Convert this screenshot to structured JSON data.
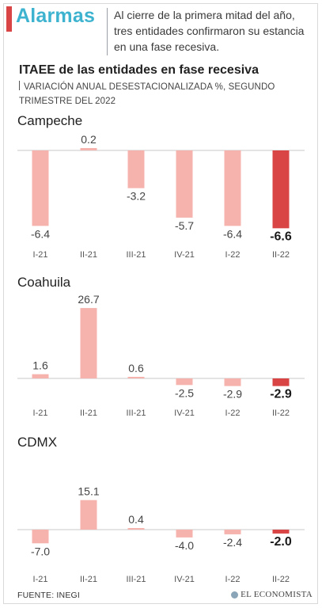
{
  "header": {
    "title": "Alarmas",
    "description": "Al cierre de la primera mitad del año, tres entidades confirmaron su estancia en una fase recesiva.",
    "accent_color": "#d94545",
    "title_color": "#3eb3cf"
  },
  "chart_title": "ITAEE de las entidades en fase recesiva",
  "chart_subtitle": "VARIACIÓN ANUAL DESESTACIONALIZADA %, SEGUNDO TRIMESTRE DEL 2022",
  "footer": {
    "source": "FUENTE: INEGI",
    "brand": "EL ECONOMISTA"
  },
  "colors": {
    "bar": "#f6b3ad",
    "highlight": "#d94545",
    "baseline": "#c9c9c9"
  },
  "chart_data": [
    {
      "type": "bar",
      "title": "Campeche",
      "categories": [
        "I-21",
        "II-21",
        "III-21",
        "IV-21",
        "I-22",
        "II-22"
      ],
      "values": [
        -6.4,
        0.2,
        -3.2,
        -5.7,
        -6.4,
        -6.6
      ],
      "value_labels": [
        "-6.4",
        "0.2",
        "-3.2",
        "-5.7",
        "-6.4",
        "-6.6"
      ],
      "highlight_index": 5
    },
    {
      "type": "bar",
      "title": "Coahuila",
      "categories": [
        "I-21",
        "II-21",
        "III-21",
        "IV-21",
        "I-22",
        "II-22"
      ],
      "values": [
        1.6,
        26.7,
        0.6,
        -2.5,
        -2.9,
        -2.9
      ],
      "value_labels": [
        "1.6",
        "26.7",
        "0.6",
        "-2.5",
        "-2.9",
        "-2.9"
      ],
      "highlight_index": 5
    },
    {
      "type": "bar",
      "title": "CDMX",
      "categories": [
        "I-21",
        "II-21",
        "III-21",
        "IV-21",
        "I-22",
        "II-22"
      ],
      "values": [
        -7.0,
        15.1,
        0.4,
        -4.0,
        -2.4,
        -2.0
      ],
      "value_labels": [
        "-7.0",
        "15.1",
        "0.4",
        "-4.0",
        "-2.4",
        "-2.0"
      ],
      "highlight_index": 5
    }
  ]
}
